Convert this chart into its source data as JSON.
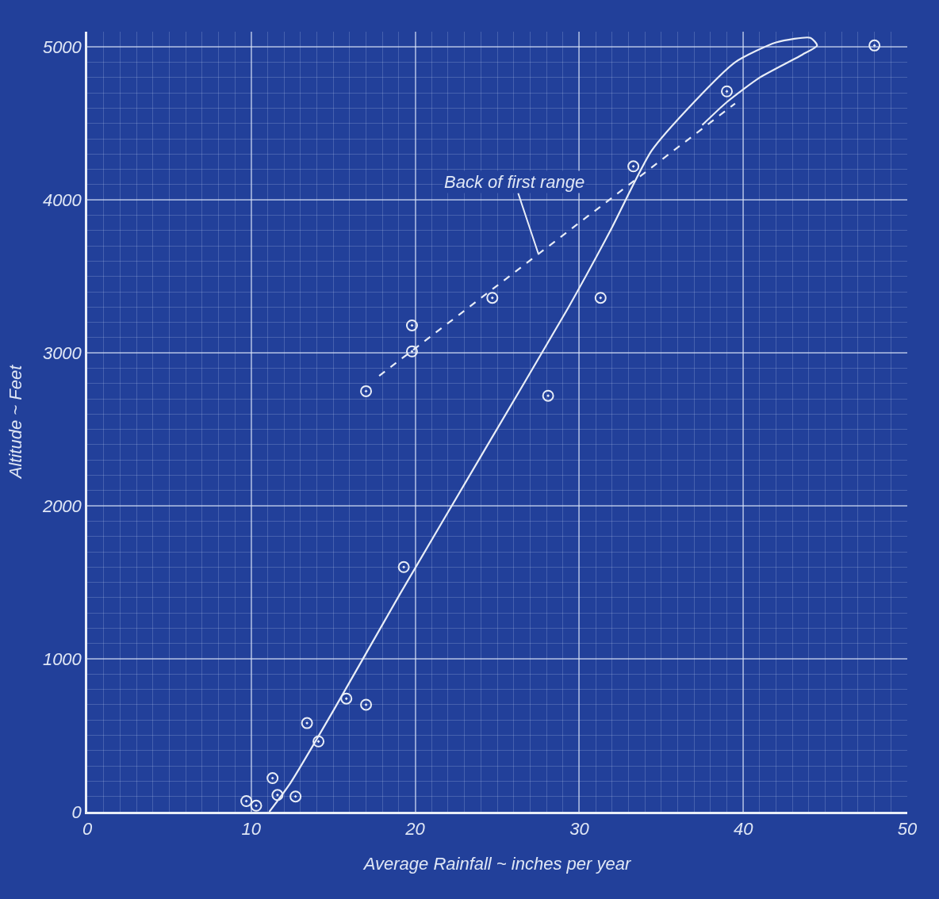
{
  "chart_data": {
    "type": "scatter",
    "xlabel": "Average Rainfall ~ inches per year",
    "ylabel": "Altitude ~ Feet",
    "xlim": [
      0,
      50
    ],
    "ylim": [
      0,
      5100
    ],
    "xticks": [
      0,
      10,
      20,
      30,
      40,
      50
    ],
    "yticks": [
      0,
      1000,
      2000,
      3000,
      4000,
      5000
    ],
    "grid": true,
    "series": [
      {
        "color": "#e8edf7",
        "marker": "circle",
        "x": [
          9.7,
          10.3,
          11.3,
          11.6,
          12.7,
          13.4,
          14.1,
          15.8,
          17.0,
          17.0,
          19.3,
          19.8,
          19.8,
          24.7,
          28.1,
          31.3,
          33.3,
          39.0,
          48.0
        ],
        "values": [
          70,
          40,
          220,
          110,
          100,
          580,
          460,
          740,
          700,
          2750,
          1600,
          3180,
          3010,
          3360,
          2720,
          3360,
          4220,
          4710,
          5010
        ]
      },
      {
        "type": "line",
        "color": "#e8edf7",
        "line_style": "solid",
        "x": [
          11.1,
          12.4,
          15.0,
          19.1,
          24.2,
          29.3,
          31.9,
          34.4,
          37.0,
          39.5,
          42.0,
          44.1,
          44.5,
          43.6,
          41.0,
          39.0,
          37.5
        ],
        "values": [
          0,
          190,
          660,
          1430,
          2360,
          3290,
          3800,
          4320,
          4640,
          4900,
          5030,
          5060,
          5010,
          4950,
          4800,
          4640,
          4490
        ]
      },
      {
        "type": "line",
        "color": "#e8edf7",
        "line_style": "dashed",
        "x": [
          17.8,
          39.5
        ],
        "values": [
          2850,
          4630
        ]
      }
    ],
    "annotations": [
      {
        "text": "Back of first range",
        "x": 27.5,
        "y": 3650
      }
    ]
  }
}
